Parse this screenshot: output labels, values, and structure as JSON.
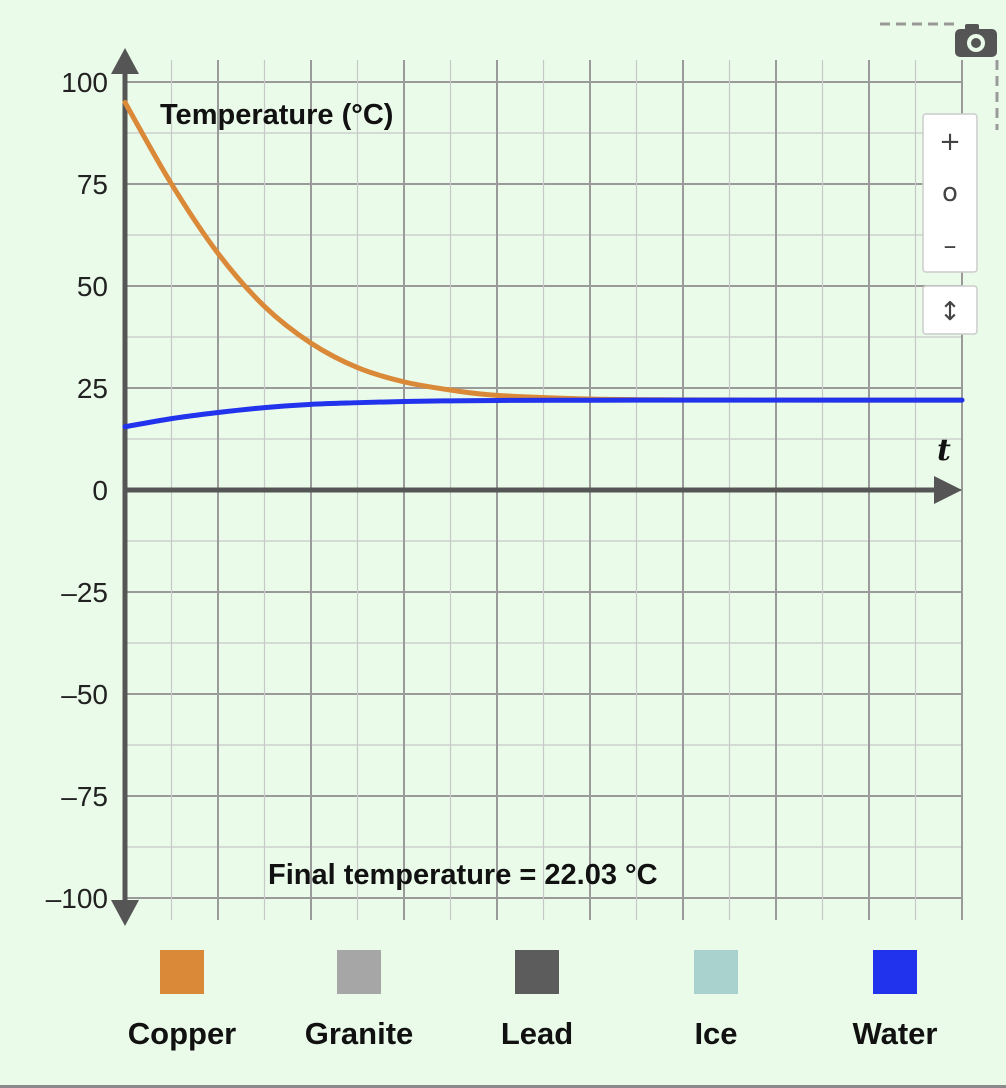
{
  "chart_data": {
    "type": "line",
    "ylabel": "Temperature (°C)",
    "xlabel": "t",
    "ylim": [
      -100,
      100
    ],
    "yticks": [
      "100",
      "75",
      "50",
      "25",
      "0",
      "–25",
      "–50",
      "–75",
      "–100"
    ],
    "grid": true,
    "annotation": "Final temperature = 22.03 °C",
    "final_temperature": 22.03,
    "series": [
      {
        "name": "Copper",
        "color": "#d98938",
        "x": [
          0,
          0.5,
          1,
          1.5,
          2,
          2.5,
          3,
          3.5,
          4,
          5,
          6,
          7,
          8,
          9
        ],
        "values": [
          95,
          75,
          58,
          45,
          36,
          30,
          26.5,
          24.5,
          23.2,
          22.3,
          22.1,
          22.05,
          22.03,
          22.03
        ]
      },
      {
        "name": "Water",
        "color": "#2233ee",
        "x": [
          0,
          0.5,
          1,
          1.5,
          2,
          2.5,
          3,
          3.5,
          4,
          5,
          6,
          7,
          8,
          9
        ],
        "values": [
          15.5,
          17.5,
          19,
          20.2,
          21,
          21.4,
          21.7,
          21.85,
          21.95,
          22.0,
          22.03,
          22.03,
          22.03,
          22.03
        ]
      }
    ],
    "legend": [
      {
        "name": "Copper",
        "color": "#d98938"
      },
      {
        "name": "Granite",
        "color": "#a6a6a6"
      },
      {
        "name": "Lead",
        "color": "#5c5c5c"
      },
      {
        "name": "Ice",
        "color": "#a9d2cf"
      },
      {
        "name": "Water",
        "color": "#2233ee"
      }
    ]
  },
  "controls": {
    "zoom_in": "+",
    "zoom_reset": "o",
    "zoom_out": "–",
    "resize": "↕",
    "camera_icon": "camera-icon"
  }
}
